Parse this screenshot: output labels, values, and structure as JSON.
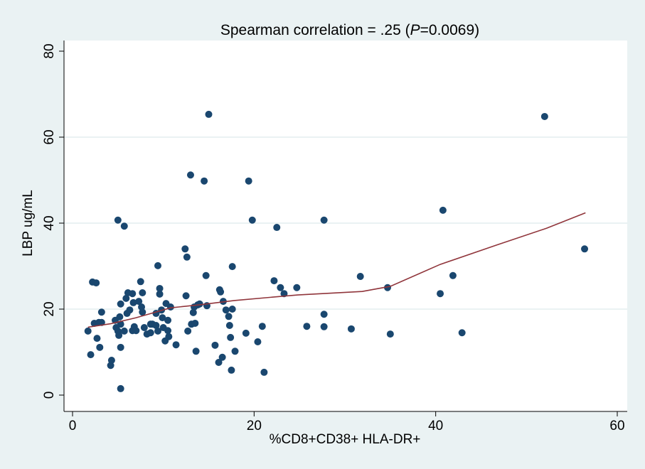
{
  "chart_data": {
    "type": "scatter",
    "title": "Spearman correlation =   .25 (",
    "title_p": "P",
    "title_end": "=0.0069)",
    "xlabel": "%CD8+CD38+ HLA-DR+",
    "ylabel": "LBP ug/mL",
    "xlim": [
      -1,
      61
    ],
    "ylim": [
      -2,
      82
    ],
    "xticks": [
      0,
      20,
      40,
      60
    ],
    "yticks": [
      0,
      20,
      40,
      60,
      80
    ],
    "grid": true,
    "colors": {
      "marker": "#1a476f",
      "line": "#90353b",
      "grid": "#eaf2f3",
      "background": "#eaf2f3",
      "plot": "#ffffff"
    },
    "points": [
      [
        1.7,
        14.9
      ],
      [
        2.0,
        9.4
      ],
      [
        2.2,
        26.3
      ],
      [
        2.6,
        26.1
      ],
      [
        2.4,
        16.7
      ],
      [
        2.7,
        13.2
      ],
      [
        3.0,
        11.1
      ],
      [
        2.9,
        16.9
      ],
      [
        3.2,
        16.9
      ],
      [
        3.2,
        19.3
      ],
      [
        4.2,
        6.9
      ],
      [
        4.3,
        8.1
      ],
      [
        4.7,
        17.4
      ],
      [
        4.8,
        15.7
      ],
      [
        5.0,
        14.9
      ],
      [
        5.0,
        40.7
      ],
      [
        5.1,
        13.9
      ],
      [
        5.3,
        16.5
      ],
      [
        5.2,
        18.2
      ],
      [
        5.3,
        21.2
      ],
      [
        5.3,
        11.1
      ],
      [
        5.3,
        1.5
      ],
      [
        5.7,
        14.9
      ],
      [
        5.7,
        39.3
      ],
      [
        5.9,
        22.5
      ],
      [
        6.1,
        23.8
      ],
      [
        6.0,
        19.0
      ],
      [
        6.3,
        19.8
      ],
      [
        6.6,
        15.0
      ],
      [
        6.8,
        15.9
      ],
      [
        6.7,
        21.5
      ],
      [
        6.6,
        23.6
      ],
      [
        7.0,
        15.0
      ],
      [
        7.3,
        21.8
      ],
      [
        7.5,
        26.4
      ],
      [
        7.6,
        20.5
      ],
      [
        7.7,
        19.3
      ],
      [
        7.9,
        15.7
      ],
      [
        7.7,
        23.8
      ],
      [
        8.2,
        14.2
      ],
      [
        8.6,
        16.5
      ],
      [
        8.6,
        14.5
      ],
      [
        8.8,
        16.5
      ],
      [
        9.2,
        16.2
      ],
      [
        9.4,
        30.1
      ],
      [
        9.2,
        19.0
      ],
      [
        9.4,
        14.9
      ],
      [
        9.6,
        24.8
      ],
      [
        9.6,
        23.5
      ],
      [
        9.8,
        19.8
      ],
      [
        9.9,
        18.0
      ],
      [
        10.2,
        12.6
      ],
      [
        10.0,
        15.7
      ],
      [
        10.3,
        21.3
      ],
      [
        10.5,
        17.4
      ],
      [
        10.5,
        15.0
      ],
      [
        10.6,
        13.6
      ],
      [
        10.8,
        20.5
      ],
      [
        11.4,
        11.7
      ],
      [
        12.4,
        34.0
      ],
      [
        12.6,
        32.1
      ],
      [
        12.5,
        23.1
      ],
      [
        12.7,
        14.9
      ],
      [
        13.0,
        51.2
      ],
      [
        13.1,
        16.5
      ],
      [
        13.3,
        19.2
      ],
      [
        13.4,
        20.5
      ],
      [
        13.5,
        16.7
      ],
      [
        13.6,
        10.2
      ],
      [
        13.8,
        21.0
      ],
      [
        14.0,
        21.2
      ],
      [
        14.5,
        49.8
      ],
      [
        14.7,
        27.8
      ],
      [
        14.8,
        20.8
      ],
      [
        15.0,
        65.3
      ],
      [
        15.7,
        11.6
      ],
      [
        16.1,
        7.6
      ],
      [
        16.2,
        24.5
      ],
      [
        16.3,
        24.0
      ],
      [
        16.5,
        8.8
      ],
      [
        16.6,
        21.8
      ],
      [
        16.9,
        19.8
      ],
      [
        17.2,
        18.3
      ],
      [
        17.3,
        16.2
      ],
      [
        17.4,
        13.4
      ],
      [
        17.5,
        5.8
      ],
      [
        17.6,
        20.0
      ],
      [
        17.6,
        29.9
      ],
      [
        17.9,
        10.2
      ],
      [
        19.1,
        14.4
      ],
      [
        19.4,
        49.8
      ],
      [
        19.8,
        40.7
      ],
      [
        20.4,
        12.4
      ],
      [
        20.9,
        16.0
      ],
      [
        21.1,
        5.3
      ],
      [
        22.2,
        26.6
      ],
      [
        22.5,
        39.0
      ],
      [
        22.9,
        25.0
      ],
      [
        23.3,
        23.6
      ],
      [
        24.7,
        25.0
      ],
      [
        25.8,
        16.0
      ],
      [
        27.7,
        40.7
      ],
      [
        27.7,
        18.8
      ],
      [
        27.7,
        15.9
      ],
      [
        30.7,
        15.4
      ],
      [
        31.7,
        27.6
      ],
      [
        34.7,
        25.0
      ],
      [
        35.0,
        14.2
      ],
      [
        40.5,
        23.6
      ],
      [
        40.8,
        43.0
      ],
      [
        41.9,
        27.8
      ],
      [
        42.9,
        14.5
      ],
      [
        52.0,
        64.8
      ],
      [
        56.4,
        34.0
      ]
    ],
    "fit_line": [
      [
        1.7,
        15.8
      ],
      [
        4.2,
        16.6
      ],
      [
        7.0,
        18.0
      ],
      [
        10.8,
        20.3
      ],
      [
        14.0,
        21.0
      ],
      [
        17.8,
        22.0
      ],
      [
        24.8,
        23.3
      ],
      [
        31.9,
        24.1
      ],
      [
        35.0,
        25.3
      ],
      [
        40.5,
        30.4
      ],
      [
        46.7,
        34.9
      ],
      [
        52.2,
        38.8
      ],
      [
        56.5,
        42.4
      ]
    ]
  }
}
